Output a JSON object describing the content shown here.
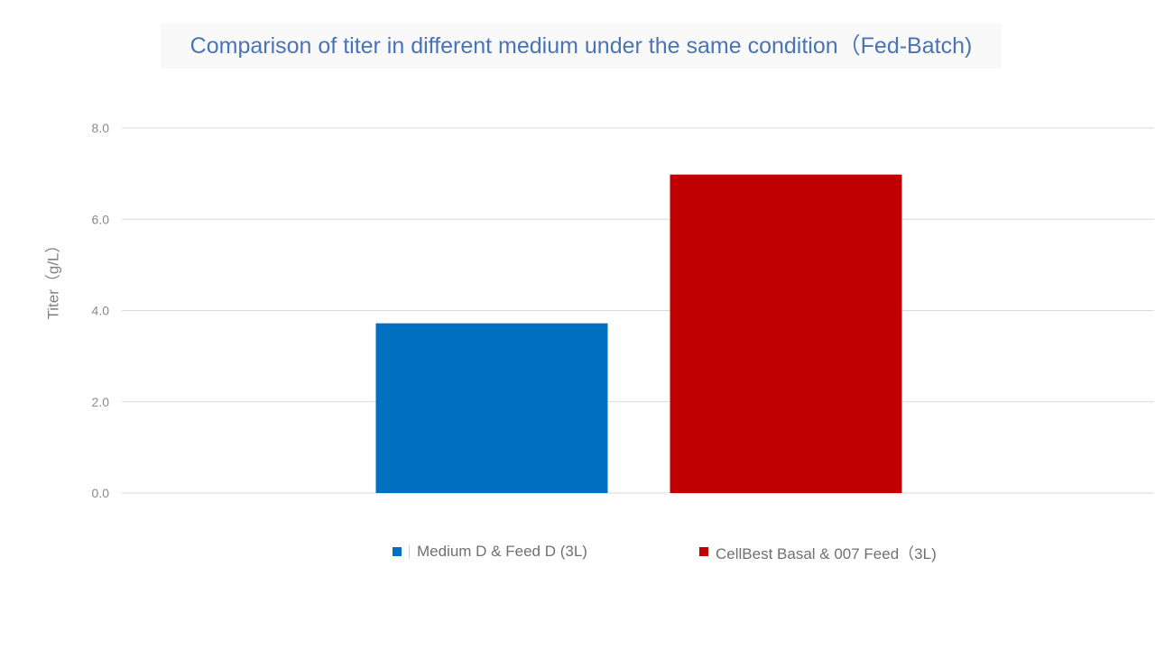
{
  "colors": {
    "title": "#4a74b8",
    "series_1": "#0070c0",
    "series_2": "#c00000",
    "gridline": "#d9d9d9",
    "axis_text": "#8a8a8a"
  },
  "chart_data": {
    "type": "bar",
    "title": "Comparison of titer in different medium under the same condition（Fed-Batch)",
    "xlabel": "",
    "ylabel": "Titer（g/L）",
    "ylim": [
      0,
      8
    ],
    "y_ticks": [
      "0.0",
      "2.0",
      "4.0",
      "6.0",
      "8.0"
    ],
    "grid": true,
    "legend_position": "bottom",
    "categories": [
      ""
    ],
    "series": [
      {
        "name": "Medium D & Feed D (3L)",
        "values": [
          3.72
        ],
        "color": "#0070c0"
      },
      {
        "name": "CellBest Basal & 007 Feed（3L)",
        "values": [
          6.98
        ],
        "color": "#c00000"
      }
    ]
  }
}
